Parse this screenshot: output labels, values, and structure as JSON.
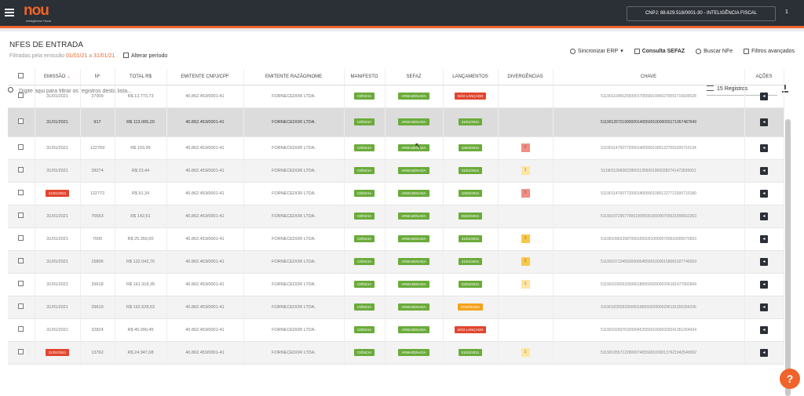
{
  "topbar": {
    "logo": "nou",
    "logo_sub": "Inteligência Fiscal",
    "company": "CNPJ: 88.629.518/0001-30 - INTELIGÊNCIA FISCAL",
    "count": "1"
  },
  "page": {
    "title": "NFES DE ENTRADA",
    "subtitle_prefix": "Filtradas pela emissão",
    "date_from": "01/01/21",
    "subtitle_mid": "a",
    "date_to": "31/01/21",
    "period_label": "Alterar período"
  },
  "actions": {
    "sync": "Sincronizar ERP",
    "sefaz": "Consulta SEFAZ",
    "search_nfe": "Buscar NFe",
    "advanced": "Filtros avançados"
  },
  "filter": {
    "placeholder": "Digite aqui para filtrar os registros desta lista...",
    "registers": "15 Registros"
  },
  "columns": [
    "EMISSÃO",
    "Nº",
    "TOTAL R$",
    "EMITENTE CNPJ/CPF",
    "EMITENTE RAZÃO/NOME",
    "MANIFESTO",
    "SEFAZ",
    "LANÇAMENTOS",
    "DIVERGÊNCIAS",
    "CHAVE",
    "AÇÕES"
  ],
  "rows": [
    {
      "date": "31/01/2021",
      "num": "27009",
      "total": "R$ 13.773,73",
      "cnpj": "40.862.453/0001-41",
      "name": "FORNECEDOR LTDA.",
      "manifest": "CIÊNCIA",
      "sefaz": "ARMAZENADA",
      "launch": "NÃO LANÇADO",
      "launch_color": "red",
      "chave": "51190110950255000179550010000270091716609528"
    },
    {
      "date": "31/01/2021",
      "num": "917",
      "total": "R$ 113.065,20",
      "cnpj": "40.862.453/0001-41",
      "name": "FORNECEDOR LTDA.",
      "manifest": "CIÊNCIA",
      "sefaz": "ARMAZENADA",
      "launch": "31/01/2021",
      "launch_color": "green",
      "chave": "51190126721990000140550010000009171957487649"
    },
    {
      "date": "31/01/2021",
      "num": "122769",
      "total": "R$ 193,99",
      "cnpj": "40.862.453/0001-41",
      "name": "FORNECEDOR LTDA.",
      "manifest": "CIÊNCIA",
      "sefaz": "ARMAZENADA",
      "launch": "18/02/2021",
      "launch_color": "green",
      "div": "4",
      "chave": "51190114700772000140550010001227691000710134"
    },
    {
      "date": "31/01/2021",
      "num": "28274",
      "total": "R$ 23,44",
      "cnpj": "40.862.453/0001-41",
      "name": "FORNECEDOR LTDA.",
      "manifest": "CIÊNCIA",
      "sefaz": "ARMAZENADA",
      "launch": "31/01/2021",
      "launch_color": "green",
      "div": "1",
      "chave": "51190112660622800113550010000282741472820001"
    },
    {
      "date": "31/01/2021",
      "num": "122772",
      "total": "R$ 91,34",
      "cnpj": "40.862.453/0001-41",
      "name": "FORNECEDOR LTDA.",
      "manifest": "CIÊNCIA",
      "sefaz": "ARMAZENADA",
      "launch": "18/02/2021",
      "launch_color": "green",
      "div": "5",
      "date_red": true,
      "chave": "51190114700772000140550010001227721000710180"
    },
    {
      "date": "31/01/2021",
      "num": "70653",
      "total": "R$ 142,51",
      "cnpj": "40.862.453/0001-41",
      "name": "FORNECEDOR LTDA.",
      "manifest": "CIÊNCIA",
      "sefaz": "ARMAZENADA",
      "launch": "05/02/2021",
      "launch_color": "green",
      "chave": "51190107295770001905500100000706531890562263"
    },
    {
      "date": "31/01/2021",
      "num": "7000",
      "total": "R$ 25.350,00",
      "cnpj": "40.862.453/0001-41",
      "name": "FORNECEDOR LTDA.",
      "manifest": "CIÊNCIA",
      "sefaz": "ARMAZENADA",
      "launch": "31/01/2021",
      "launch_color": "green",
      "div": "3",
      "chave": "51190109623587000165500100000700010000070003"
    },
    {
      "date": "31/01/2021",
      "num": "15806",
      "total": "R$ 122.042,76",
      "cnpj": "40.862.453/0001-41",
      "name": "FORNECEDOR LTDA.",
      "manifest": "CIÊNCIA",
      "sefaz": "ARMAZENADA",
      "launch": "31/01/2021",
      "launch_color": "green",
      "div": "2",
      "chave": "51190107134550000004550010000158061927746559"
    },
    {
      "date": "31/01/2021",
      "num": "29618",
      "total": "R$ 161.318,35",
      "cnpj": "40.862.453/0001-41",
      "name": "FORNECEDOR LTDA.",
      "manifest": "CIÊNCIA",
      "sefaz": "ARMAZENADA",
      "launch": "02/02/2021",
      "launch_color": "green",
      "div": "1",
      "chave": "51190103926335000186550020000296181477902849"
    },
    {
      "date": "31/01/2021",
      "num": "29619",
      "total": "R$ 162.628,53",
      "cnpj": "40.862.453/0001-41",
      "name": "FORNECEDOR LTDA.",
      "manifest": "CIÊNCIA",
      "sefaz": "ARMAZENADA",
      "launch": "IGNORADA",
      "launch_color": "orange",
      "chave": "51190103926335000186550020000296191155294236"
    },
    {
      "date": "31/01/2021",
      "num": "32824",
      "total": "R$ 45.990,45",
      "cnpj": "40.862.453/0001-41",
      "name": "FORNECEDOR LTDA.",
      "manifest": "CIÊNCIA",
      "sefaz": "ARMAZENADA",
      "launch": "NÃO LANÇADO",
      "launch_color": "red",
      "chave": "51190102937632000452550010000328241351264434"
    },
    {
      "date": "31/01/2021",
      "num": "13762",
      "total": "R$ 24.947,08",
      "cnpj": "40.862.453/0001-41",
      "name": "FORNECEDOR LTDA.",
      "manifest": "CIÊNCIA",
      "sefaz": "ARMAZENADA",
      "launch": "01/02/2021",
      "launch_color": "green",
      "div": "1",
      "date_red": true,
      "chave": "51190105571228000740550010000137621942549092"
    }
  ],
  "help": "?"
}
